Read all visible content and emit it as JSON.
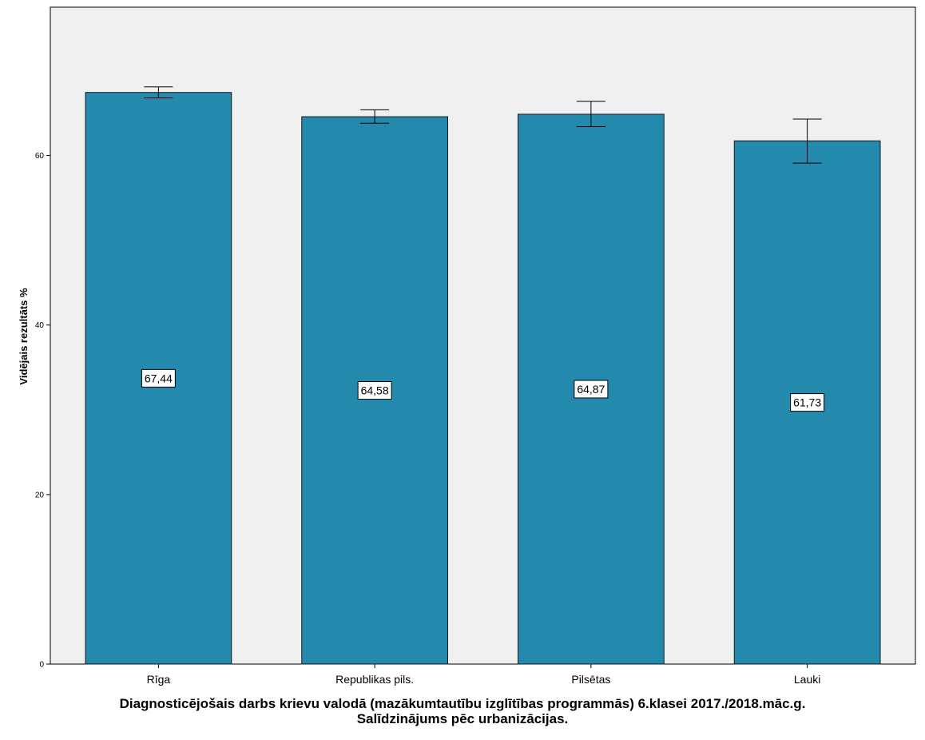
{
  "chart_data": {
    "type": "bar",
    "categories": [
      "Rīga",
      "Republikas pils.",
      "Pilsētas",
      "Lauki"
    ],
    "values": [
      67.44,
      64.58,
      64.87,
      61.73
    ],
    "value_labels": [
      "67,44",
      "64,58",
      "64,87",
      "61,73"
    ],
    "error_low": [
      66.8,
      63.8,
      63.4,
      59.1
    ],
    "error_high": [
      68.1,
      65.4,
      66.4,
      64.3
    ],
    "ylabel": "Vidējais rezultāts %",
    "ylim": [
      0,
      77.5
    ],
    "yticks": [
      0,
      20,
      40,
      60
    ],
    "ytick_labels": [
      "0",
      "20",
      "40",
      "60"
    ],
    "xtitle_line1": "Diagnosticējošais darbs krievu valodā (mazākumtautību izglītības programmās) 6.klasei 2017./2018.māc.g.",
    "xtitle_line2": "Salīdzinājums pēc urbanizācijas.",
    "bar_color": "#248aad",
    "plot_background": "#f0f0f0",
    "grid": false
  }
}
